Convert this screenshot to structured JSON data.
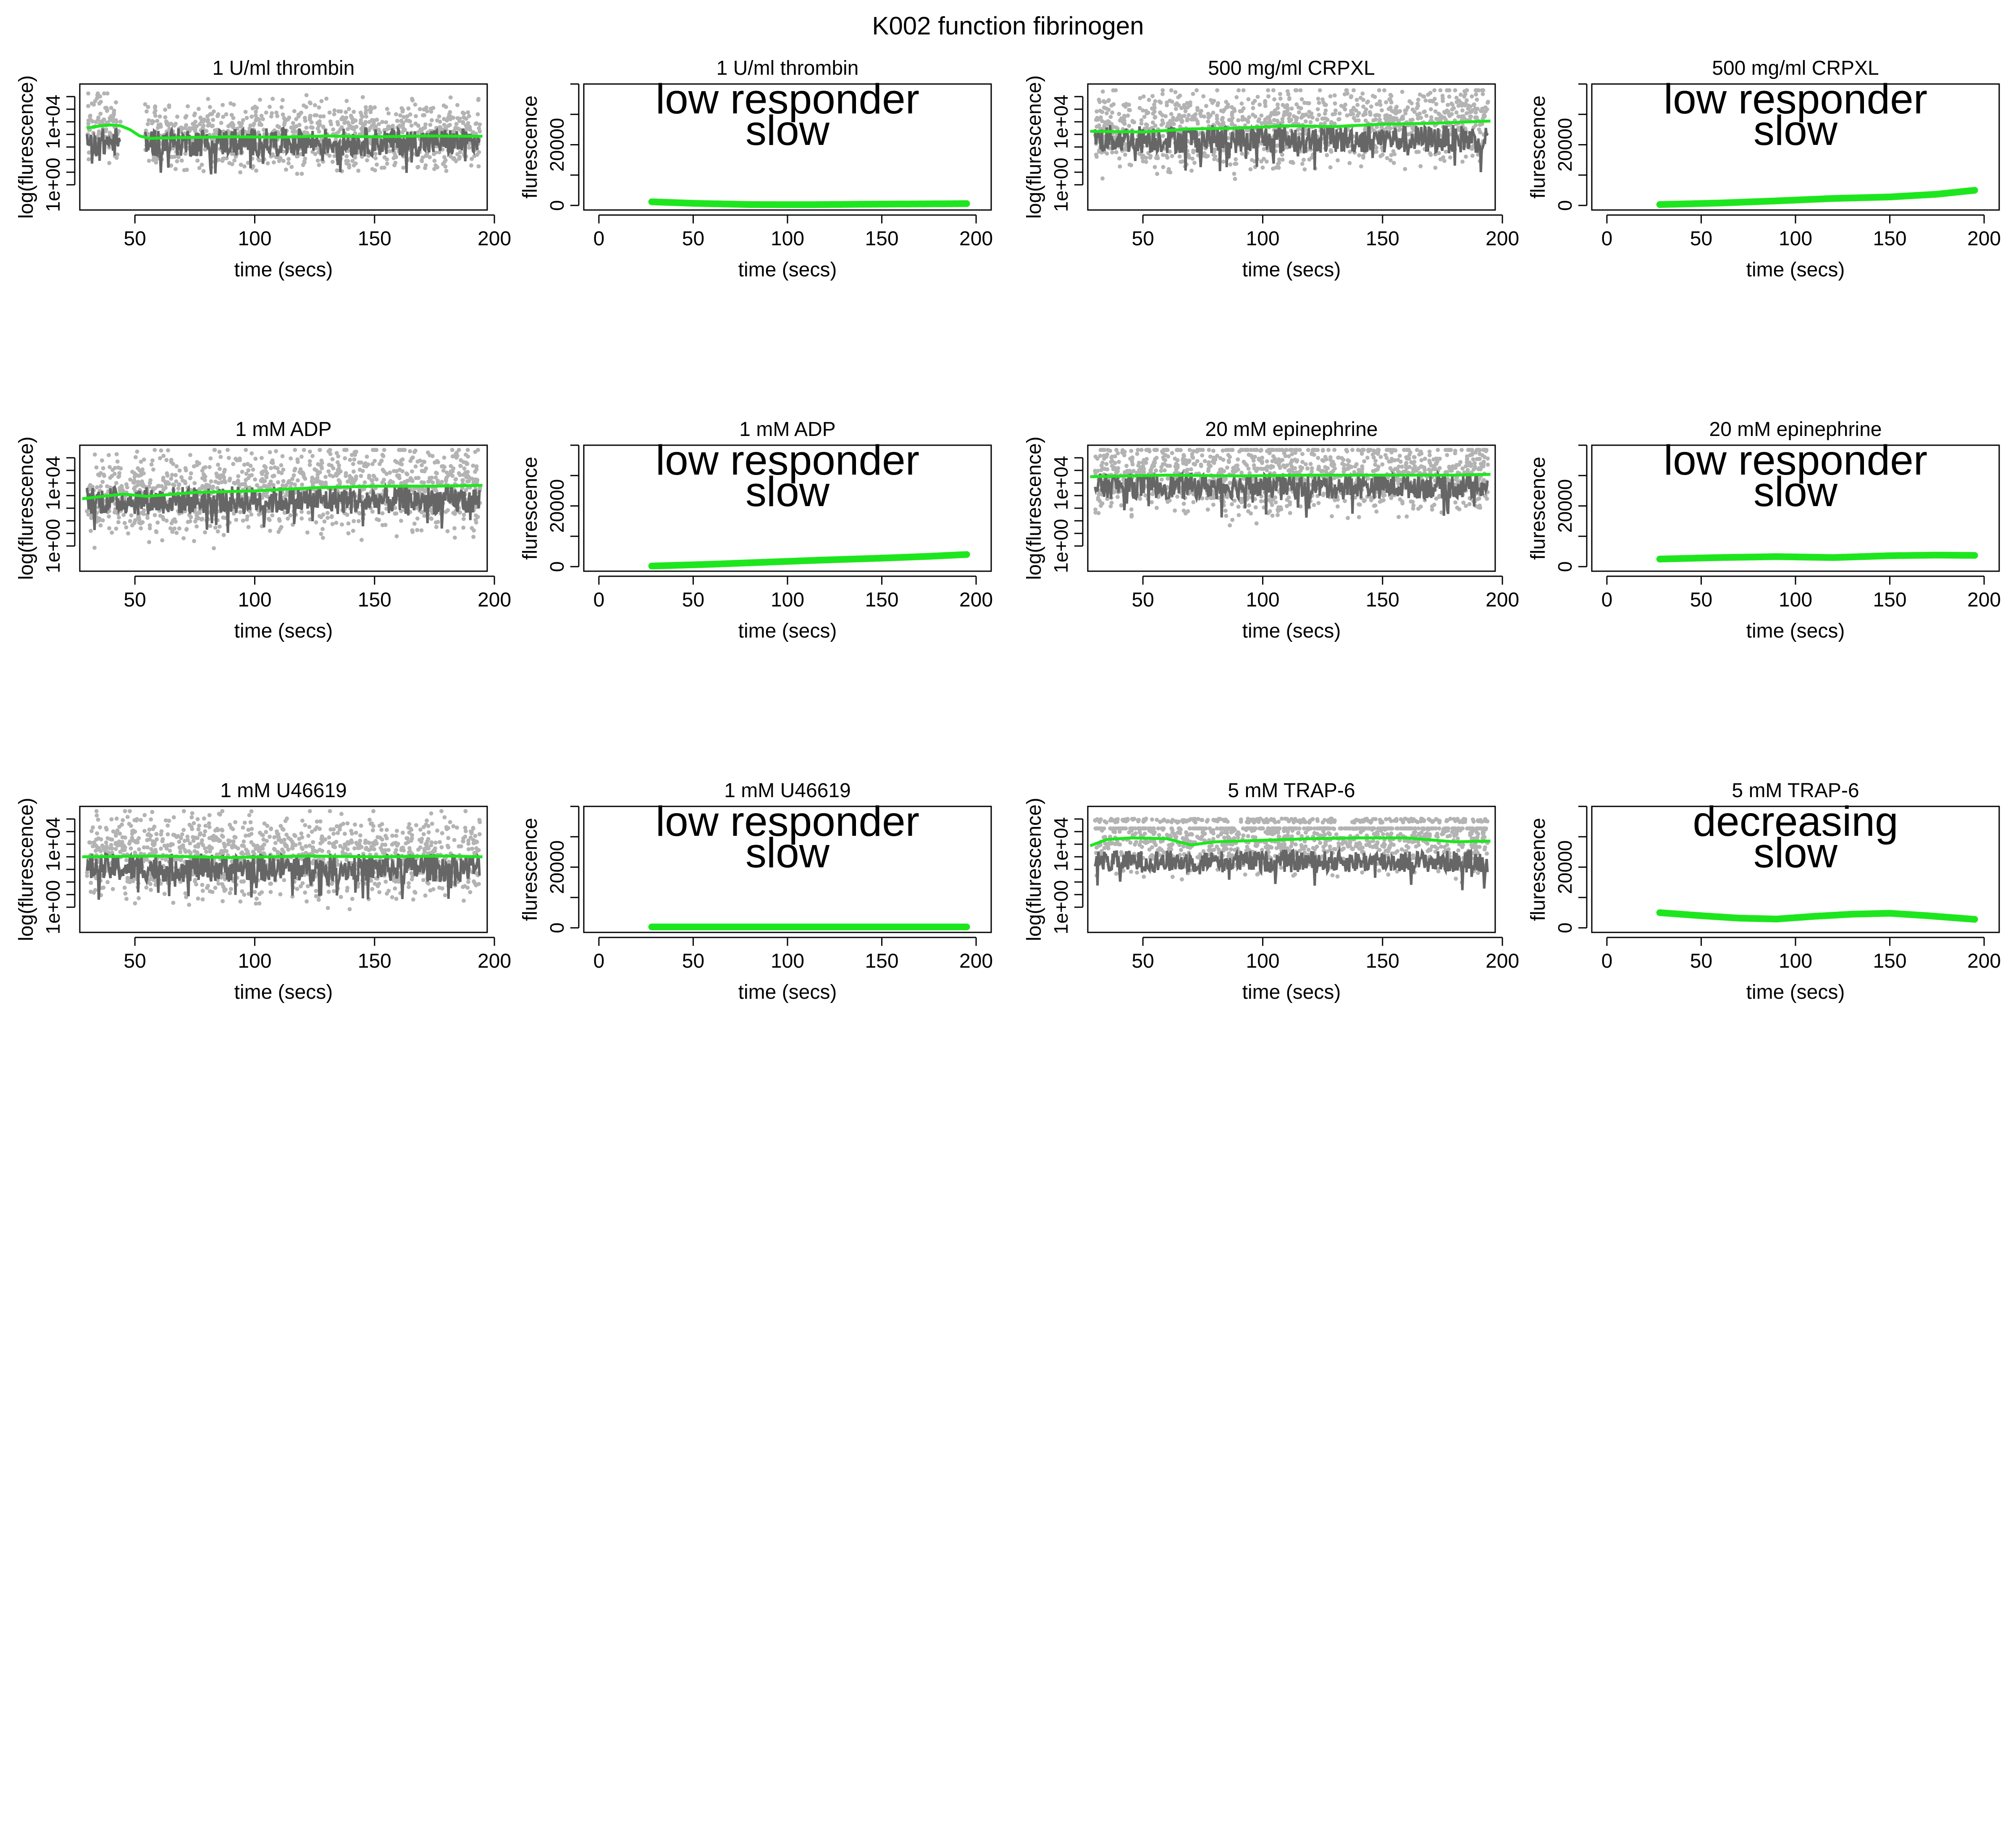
{
  "figure": {
    "title": "K002 function  fibrinogen"
  },
  "colors": {
    "scatter_light": "#b3b3b3",
    "trace_dark": "#666666",
    "fit_line": "#1ee61e",
    "axis": "#000000",
    "background": "#ffffff"
  },
  "chart_data": [
    {
      "panel": "thrombin-raw",
      "type": "scatter",
      "title": "1 U/ml   thrombin",
      "xlabel": "time (secs)",
      "ylabel": "log(flurescence)",
      "xlim": [
        27,
        197
      ],
      "xticks": [
        50,
        100,
        150,
        200
      ],
      "yscale": "log",
      "ylim_log10": [
        -1.6,
        6.4
      ],
      "yticks": [
        {
          "log10": 0,
          "label": "1e+00"
        },
        {
          "log10": 4,
          "label": "1e+04"
        }
      ],
      "points_light_range_log10": [
        1.0,
        5.6
      ],
      "trace_dark_band_log10": [
        1.8,
        3.6
      ],
      "gap": [
        44,
        54
      ],
      "fit": {
        "x": [
          30,
          36,
          40,
          44,
          48,
          52,
          56,
          70,
          90,
          110,
          130,
          150,
          170,
          195
        ],
        "y_log10": [
          3.6,
          3.75,
          3.8,
          3.75,
          3.5,
          3.1,
          2.95,
          3.0,
          3.05,
          3.02,
          3.1,
          3.05,
          3.1,
          3.08
        ]
      }
    },
    {
      "panel": "thrombin-fit",
      "type": "line",
      "title": "1 U/ml   thrombin",
      "xlabel": "time (secs)",
      "ylabel": "flurescence",
      "xlim": [
        -8,
        208
      ],
      "xticks": [
        0,
        50,
        100,
        150,
        200
      ],
      "ylim": [
        -1500,
        40000
      ],
      "yticks_labeled": [
        0,
        20000
      ],
      "annotation": [
        "low responder",
        "slow"
      ],
      "series": [
        {
          "x": [
            28,
            50,
            80,
            110,
            140,
            170,
            195
          ],
          "y": [
            1200,
            700,
            300,
            250,
            400,
            500,
            600
          ]
        }
      ]
    },
    {
      "panel": "crpxl-raw",
      "type": "scatter",
      "title": "500 mg/ml   CRPXL",
      "xlabel": "time (secs)",
      "ylabel": "log(flurescence)",
      "xlim": [
        27,
        197
      ],
      "xticks": [
        50,
        100,
        150,
        200
      ],
      "yscale": "log",
      "ylim_log10": [
        -1.6,
        6.4
      ],
      "yticks": [
        {
          "log10": 0,
          "label": "1e+00"
        },
        {
          "log10": 4,
          "label": "1e+04"
        }
      ],
      "points_light_range_log10": [
        0.3,
        5.8
      ],
      "trace_dark_band_log10": [
        2.0,
        3.8
      ],
      "fit": {
        "x": [
          28,
          50,
          70,
          90,
          110,
          130,
          150,
          170,
          195
        ],
        "y_log10": [
          3.4,
          3.35,
          3.55,
          3.6,
          3.75,
          3.7,
          3.85,
          3.9,
          4.05
        ]
      }
    },
    {
      "panel": "crpxl-fit",
      "type": "line",
      "title": "500 mg/ml   CRPXL",
      "xlabel": "time (secs)",
      "ylabel": "flurescence",
      "xlim": [
        -8,
        208
      ],
      "xticks": [
        0,
        50,
        100,
        150,
        200
      ],
      "ylim": [
        -1500,
        40000
      ],
      "yticks_labeled": [
        0,
        20000
      ],
      "annotation": [
        "low responder",
        "slow"
      ],
      "series": [
        {
          "x": [
            28,
            60,
            90,
            120,
            150,
            175,
            195
          ],
          "y": [
            300,
            800,
            1500,
            2300,
            2800,
            3700,
            5000
          ]
        }
      ]
    },
    {
      "panel": "adp-raw",
      "type": "scatter",
      "title": "1 mM   ADP",
      "xlabel": "time (secs)",
      "ylabel": "log(flurescence)",
      "xlim": [
        27,
        197
      ],
      "xticks": [
        50,
        100,
        150,
        200
      ],
      "yscale": "log",
      "ylim_log10": [
        -1.6,
        6.4
      ],
      "yticks": [
        {
          "log10": 0,
          "label": "1e+00"
        },
        {
          "log10": 4,
          "label": "1e+04"
        }
      ],
      "points_light_range_log10": [
        0.0,
        5.9
      ],
      "trace_dark_band_log10": [
        2.0,
        3.8
      ],
      "fit": {
        "x": [
          28,
          45,
          55,
          75,
          100,
          125,
          150,
          175,
          195
        ],
        "y_log10": [
          3.0,
          3.3,
          3.15,
          3.4,
          3.5,
          3.7,
          3.8,
          3.8,
          3.85
        ]
      }
    },
    {
      "panel": "adp-fit",
      "type": "line",
      "title": "1 mM   ADP",
      "xlabel": "time (secs)",
      "ylabel": "flurescence",
      "xlim": [
        -8,
        208
      ],
      "xticks": [
        0,
        50,
        100,
        150,
        200
      ],
      "ylim": [
        -1500,
        40000
      ],
      "yticks_labeled": [
        0,
        20000
      ],
      "annotation": [
        "low responder",
        "slow"
      ],
      "series": [
        {
          "x": [
            28,
            60,
            90,
            120,
            150,
            175,
            195
          ],
          "y": [
            200,
            800,
            1500,
            2200,
            2800,
            3400,
            4000
          ]
        }
      ]
    },
    {
      "panel": "epinephrine-raw",
      "type": "scatter",
      "title": "20 mM   epinephrine",
      "xlabel": "time (secs)",
      "ylabel": "log(flurescence)",
      "xlim": [
        27,
        197
      ],
      "xticks": [
        50,
        100,
        150,
        200
      ],
      "yscale": "log",
      "ylim_log10": [
        -1.6,
        6.4
      ],
      "yticks": [
        {
          "log10": 0,
          "label": "1e+00"
        },
        {
          "log10": 4,
          "label": "1e+04"
        }
      ],
      "points_light_range_log10": [
        0.6,
        5.9
      ],
      "trace_dark_band_log10": [
        3.0,
        4.6
      ],
      "fit": {
        "x": [
          28,
          60,
          90,
          120,
          150,
          180,
          195
        ],
        "y_log10": [
          4.4,
          4.5,
          4.45,
          4.5,
          4.5,
          4.5,
          4.55
        ]
      }
    },
    {
      "panel": "epinephrine-fit",
      "type": "line",
      "title": "20 mM   epinephrine",
      "xlabel": "time (secs)",
      "ylabel": "flurescence",
      "xlim": [
        -8,
        208
      ],
      "xticks": [
        0,
        50,
        100,
        150,
        200
      ],
      "ylim": [
        -1500,
        40000
      ],
      "yticks_labeled": [
        0,
        20000
      ],
      "annotation": [
        "low responder",
        "slow"
      ],
      "series": [
        {
          "x": [
            28,
            60,
            90,
            120,
            150,
            175,
            195
          ],
          "y": [
            2500,
            3000,
            3300,
            3000,
            3600,
            3800,
            3700
          ]
        }
      ]
    },
    {
      "panel": "u46619-raw",
      "type": "scatter",
      "title": "1 mM   U46619",
      "xlabel": "time (secs)",
      "ylabel": "log(flurescence)",
      "xlim": [
        27,
        197
      ],
      "xticks": [
        50,
        100,
        150,
        200
      ],
      "yscale": "log",
      "ylim_log10": [
        -1.6,
        6.4
      ],
      "yticks": [
        {
          "log10": 0,
          "label": "1e+00"
        },
        {
          "log10": 4,
          "label": "1e+04"
        }
      ],
      "points_light_range_log10": [
        0.0,
        5.9
      ],
      "trace_dark_band_log10": [
        1.6,
        3.4
      ],
      "fit": {
        "x": [
          28,
          60,
          90,
          120,
          150,
          180,
          195
        ],
        "y_log10": [
          3.2,
          3.25,
          3.15,
          3.25,
          3.2,
          3.25,
          3.2
        ]
      }
    },
    {
      "panel": "u46619-fit",
      "type": "line",
      "title": "1 mM   U46619",
      "xlabel": "time (secs)",
      "ylabel": "flurescence",
      "xlim": [
        -8,
        208
      ],
      "xticks": [
        0,
        50,
        100,
        150,
        200
      ],
      "ylim": [
        -1500,
        40000
      ],
      "yticks_labeled": [
        0,
        20000
      ],
      "annotation": [
        "low responder",
        "slow"
      ],
      "series": [
        {
          "x": [
            28,
            60,
            100,
            140,
            170,
            195
          ],
          "y": [
            300,
            300,
            300,
            300,
            300,
            300
          ]
        }
      ]
    },
    {
      "panel": "trap6-raw",
      "type": "scatter",
      "title": "5 mM   TRAP-6",
      "xlabel": "time (secs)",
      "ylabel": "log(flurescence)",
      "xlim": [
        27,
        197
      ],
      "xticks": [
        50,
        100,
        150,
        200
      ],
      "yscale": "log",
      "ylim_log10": [
        -1.6,
        6.4
      ],
      "yticks": [
        {
          "log10": 0,
          "label": "1e+00"
        },
        {
          "log10": 4,
          "label": "1e+04"
        }
      ],
      "points_light_range_log10": [
        0.3,
        4.8
      ],
      "points_ceiling_log10": 5.5,
      "trace_dark_band_log10": [
        2.2,
        3.6
      ],
      "fit": {
        "x": [
          28,
          35,
          45,
          60,
          70,
          80,
          100,
          120,
          140,
          160,
          180,
          195
        ],
        "y_log10": [
          3.9,
          4.3,
          4.4,
          4.35,
          3.95,
          4.15,
          4.25,
          4.35,
          4.4,
          4.4,
          4.15,
          4.2
        ]
      }
    },
    {
      "panel": "trap6-fit",
      "type": "line",
      "title": "5 mM   TRAP-6",
      "xlabel": "time (secs)",
      "ylabel": "flurescence",
      "xlim": [
        -8,
        208
      ],
      "xticks": [
        0,
        50,
        100,
        150,
        200
      ],
      "ylim": [
        -1500,
        40000
      ],
      "yticks_labeled": [
        0,
        20000
      ],
      "annotation": [
        "decreasing",
        "slow"
      ],
      "series": [
        {
          "x": [
            28,
            50,
            70,
            90,
            110,
            130,
            150,
            170,
            195
          ],
          "y": [
            5000,
            4000,
            3200,
            2900,
            3800,
            4500,
            4800,
            4000,
            2800
          ]
        }
      ]
    }
  ]
}
